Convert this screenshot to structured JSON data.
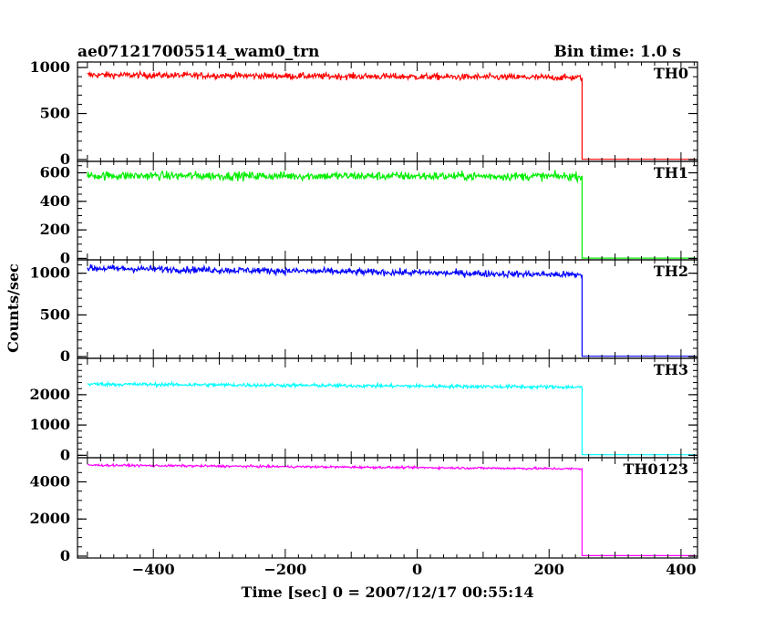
{
  "header": {
    "title": "ae071217005514_wam0_trn",
    "bin_time": "Bin time: 1.0 s"
  },
  "chart_data": {
    "type": "line",
    "xlabel": "Time [sec] 0 = 2007/12/17 00:55:14",
    "ylabel": "Counts/sec",
    "xlim": [
      -515,
      425
    ],
    "x_ticks": [
      -400,
      -200,
      0,
      200,
      400
    ],
    "x_tick_labels": [
      "−400",
      "−200",
      "0",
      "200",
      "400"
    ],
    "data_range": [
      -500,
      422
    ],
    "drop_time": 250,
    "panels": [
      {
        "name": "TH0",
        "color": "#ff0000",
        "ylim": [
          -20,
          1060
        ],
        "ticks": [
          0,
          500,
          1000
        ],
        "tick_labels": [
          "0",
          "500",
          "1000"
        ],
        "minor": 100,
        "level_start": 920,
        "level_end": 890,
        "noise": 35,
        "after": 3
      },
      {
        "name": "TH1",
        "color": "#00ee00",
        "ylim": [
          -10,
          680
        ],
        "ticks": [
          0,
          200,
          400,
          600
        ],
        "tick_labels": [
          "0",
          "200",
          "400",
          "600"
        ],
        "minor": 50,
        "level_start": 580,
        "level_end": 575,
        "noise": 30,
        "after": 2
      },
      {
        "name": "TH2",
        "color": "#0000ff",
        "ylim": [
          -20,
          1160
        ],
        "ticks": [
          0,
          500,
          1000
        ],
        "tick_labels": [
          "0",
          "500",
          "1000"
        ],
        "minor": 100,
        "level_start": 1060,
        "level_end": 980,
        "noise": 40,
        "after": 5
      },
      {
        "name": "TH3",
        "color": "#00ffff",
        "ylim": [
          -80,
          3200
        ],
        "ticks": [
          0,
          1000,
          2000
        ],
        "tick_labels": [
          "0",
          "1000",
          "2000"
        ],
        "minor": 200,
        "level_start": 2350,
        "level_end": 2250,
        "noise": 60,
        "after": 20
      },
      {
        "name": "TH0123",
        "color": "#ff00ff",
        "ylim": [
          -100,
          5300
        ],
        "ticks": [
          0,
          2000,
          4000
        ],
        "tick_labels": [
          "0",
          "2000",
          "4000"
        ],
        "minor": 500,
        "level_start": 4900,
        "level_end": 4700,
        "noise": 60,
        "after": 30
      }
    ]
  }
}
